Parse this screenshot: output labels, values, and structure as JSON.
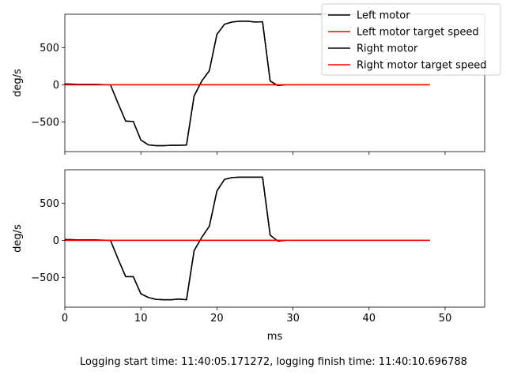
{
  "footer": "Logging start time: 11:40:05.171272, logging finish time: 11:40:10.696788",
  "chart_data": [
    {
      "type": "line",
      "ylabel": "deg/s",
      "xlabel": "",
      "xlim": [
        0,
        55.2
      ],
      "ylim": [
        -900,
        950
      ],
      "yticks": [
        -500,
        0,
        500
      ],
      "ytick_labels": [
        "−500",
        "0",
        "500"
      ],
      "xticks": [
        0,
        10,
        20,
        30,
        40,
        50
      ],
      "xtick_labels": [],
      "legend_position": "top-right",
      "legend": [
        {
          "label": "Left motor",
          "color": "#000000"
        },
        {
          "label": "Left motor target speed",
          "color": "#ff0000"
        },
        {
          "label": "Right motor",
          "color": "#000000"
        },
        {
          "label": "Right motor target speed",
          "color": "#ff0000"
        }
      ],
      "series": [
        {
          "name": "Left motor",
          "color": "#000000",
          "x": [
            0,
            2,
            4,
            6,
            7,
            8,
            9,
            10,
            11,
            12,
            13,
            14,
            15,
            16,
            17,
            18,
            19,
            20,
            21,
            22,
            23,
            24,
            25,
            26,
            27,
            28,
            29
          ],
          "y": [
            10,
            5,
            5,
            0,
            -250,
            -490,
            -495,
            -745,
            -810,
            -820,
            -820,
            -815,
            -815,
            -812,
            -150,
            50,
            190,
            680,
            815,
            845,
            855,
            855,
            845,
            848,
            50,
            -10,
            0
          ]
        },
        {
          "name": "Left motor target speed",
          "color": "#ff0000",
          "x": [
            0,
            48
          ],
          "y": [
            0,
            0
          ]
        },
        {
          "name": "Right motor",
          "color": "#000000",
          "x": [
            0,
            2,
            4,
            6,
            7,
            8,
            9,
            10,
            11,
            12,
            13,
            14,
            15,
            16,
            17,
            18,
            19,
            20,
            21,
            22,
            23,
            24,
            25,
            26,
            27,
            28,
            29
          ],
          "y": [
            10,
            5,
            5,
            0,
            -250,
            -490,
            -495,
            -745,
            -810,
            -820,
            -820,
            -815,
            -815,
            -812,
            -150,
            50,
            190,
            680,
            815,
            845,
            855,
            855,
            845,
            848,
            50,
            -10,
            0
          ]
        },
        {
          "name": "Right motor target speed",
          "color": "#ff0000",
          "x": [
            0,
            48
          ],
          "y": [
            0,
            0
          ]
        }
      ]
    },
    {
      "type": "line",
      "ylabel": "deg/s",
      "xlabel": "ms",
      "xlim": [
        0,
        55.2
      ],
      "ylim": [
        -900,
        950
      ],
      "yticks": [
        -500,
        0,
        500
      ],
      "ytick_labels": [
        "−500",
        "0",
        "500"
      ],
      "xticks": [
        0,
        10,
        20,
        30,
        40,
        50
      ],
      "xtick_labels": [
        "0",
        "10",
        "20",
        "30",
        "40",
        "50"
      ],
      "series": [
        {
          "name": "Left motor",
          "color": "#000000",
          "x": [
            0,
            2,
            4,
            6,
            7,
            8,
            9,
            10,
            11,
            12,
            13,
            14,
            15,
            16,
            17,
            18,
            19,
            20,
            21,
            22,
            23,
            24,
            25,
            26,
            27,
            28,
            29
          ],
          "y": [
            10,
            5,
            5,
            0,
            -250,
            -490,
            -490,
            -720,
            -770,
            -795,
            -800,
            -800,
            -790,
            -800,
            -140,
            40,
            190,
            665,
            820,
            845,
            850,
            850,
            850,
            850,
            70,
            -10,
            0
          ]
        },
        {
          "name": "Left motor target speed",
          "color": "#ff0000",
          "x": [
            0,
            48
          ],
          "y": [
            0,
            0
          ]
        },
        {
          "name": "Right motor",
          "color": "#000000",
          "x": [
            0,
            2,
            4,
            6,
            7,
            8,
            9,
            10,
            11,
            12,
            13,
            14,
            15,
            16,
            17,
            18,
            19,
            20,
            21,
            22,
            23,
            24,
            25,
            26,
            27,
            28,
            29
          ],
          "y": [
            10,
            5,
            5,
            0,
            -250,
            -490,
            -490,
            -720,
            -770,
            -795,
            -800,
            -800,
            -790,
            -800,
            -140,
            40,
            190,
            665,
            820,
            845,
            850,
            850,
            850,
            850,
            70,
            -10,
            0
          ]
        },
        {
          "name": "Right motor target speed",
          "color": "#ff0000",
          "x": [
            0,
            48
          ],
          "y": [
            0,
            0
          ]
        }
      ]
    }
  ]
}
